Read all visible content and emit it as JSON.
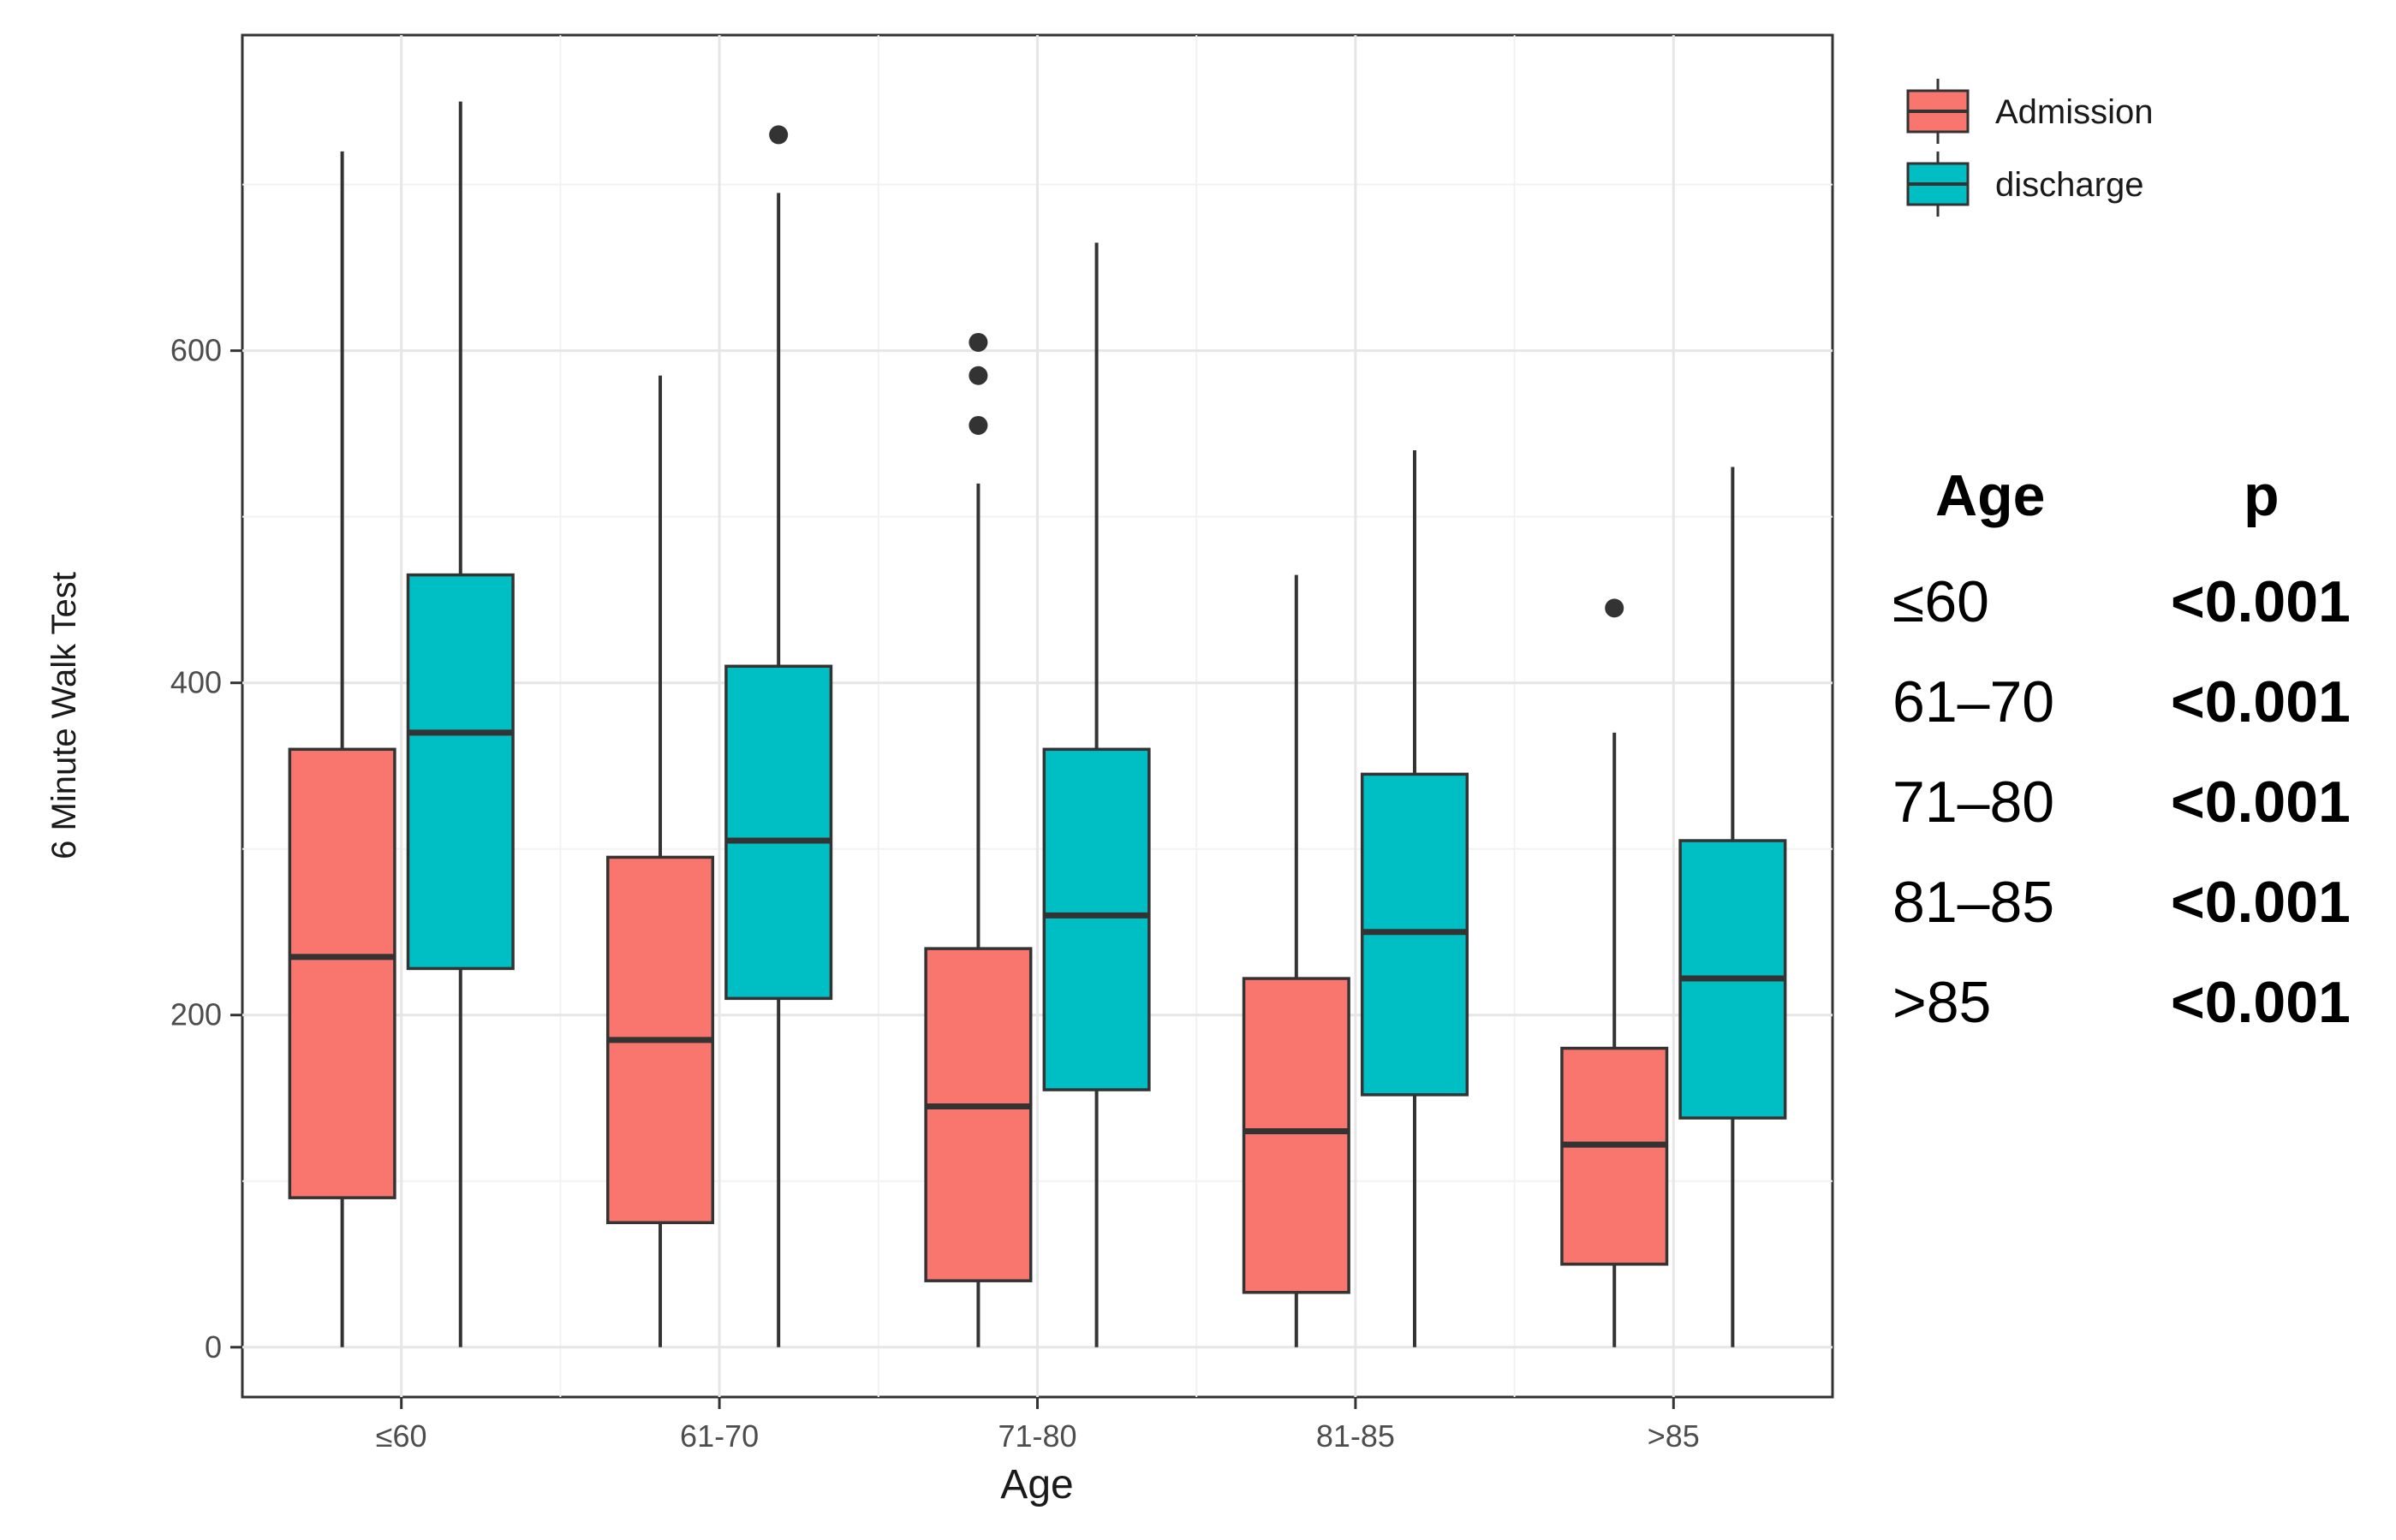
{
  "chart_data": {
    "type": "boxplot",
    "xlabel": "Age",
    "ylabel": "6 Minute Walk Test",
    "categories": [
      "≤60",
      "61-70",
      "71-80",
      "81-85",
      ">85"
    ],
    "ylim": [
      -30,
      790
    ],
    "yticks": [
      0,
      200,
      400,
      600
    ],
    "grid": true,
    "legend_position": "top-right",
    "series": [
      {
        "name": "Admission",
        "color": "#F8766D",
        "boxes": [
          {
            "min": 0,
            "q1": 90,
            "median": 235,
            "q3": 360,
            "max": 720,
            "outliers": []
          },
          {
            "min": 0,
            "q1": 75,
            "median": 185,
            "q3": 295,
            "max": 585,
            "outliers": []
          },
          {
            "min": 0,
            "q1": 40,
            "median": 145,
            "q3": 240,
            "max": 520,
            "outliers": [
              555,
              585,
              605
            ]
          },
          {
            "min": 0,
            "q1": 33,
            "median": 130,
            "q3": 222,
            "max": 465,
            "outliers": []
          },
          {
            "min": 0,
            "q1": 50,
            "median": 122,
            "q3": 180,
            "max": 370,
            "outliers": [
              445
            ]
          }
        ]
      },
      {
        "name": "discharge",
        "color": "#00BFC4",
        "boxes": [
          {
            "min": 0,
            "q1": 228,
            "median": 370,
            "q3": 465,
            "max": 750,
            "outliers": []
          },
          {
            "min": 0,
            "q1": 210,
            "median": 305,
            "q3": 410,
            "max": 695,
            "outliers": [
              730
            ]
          },
          {
            "min": 0,
            "q1": 155,
            "median": 260,
            "q3": 360,
            "max": 665,
            "outliers": []
          },
          {
            "min": 0,
            "q1": 152,
            "median": 250,
            "q3": 345,
            "max": 540,
            "outliers": []
          },
          {
            "min": 0,
            "q1": 138,
            "median": 222,
            "q3": 305,
            "max": 530,
            "outliers": []
          }
        ]
      }
    ]
  },
  "p_table": {
    "header_age": "Age",
    "header_p": "p",
    "rows": [
      {
        "age": "≤60",
        "p": "<0.001"
      },
      {
        "age": "61–70",
        "p": "<0.001"
      },
      {
        "age": "71–80",
        "p": "<0.001"
      },
      {
        "age": "81–85",
        "p": "<0.001"
      },
      {
        "age": ">85",
        "p": "<0.001"
      }
    ]
  }
}
